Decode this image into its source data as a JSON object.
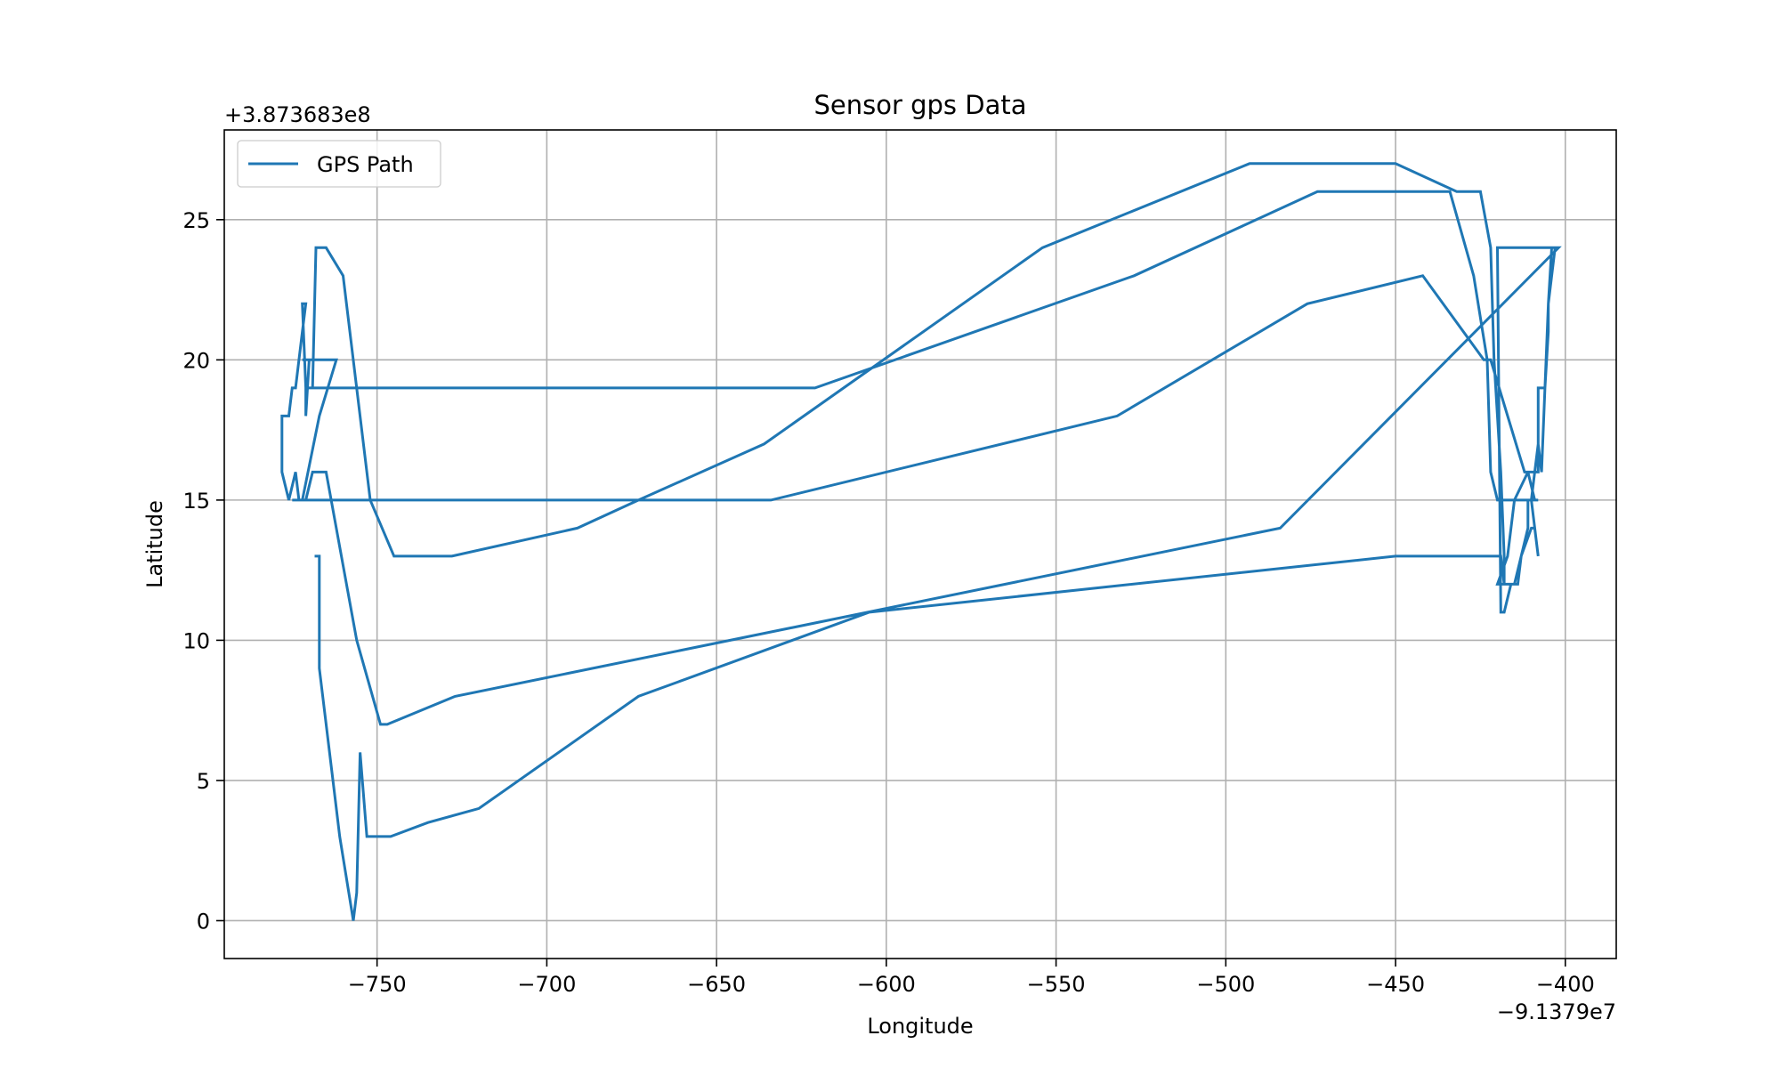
{
  "chart_data": {
    "type": "line",
    "title": "Sensor gps Data",
    "xlabel": "Longitude",
    "ylabel": "Latitude",
    "x_offset_label": "−9.1379e7",
    "y_offset_label": "+3.873683e8",
    "xlim": [
      -795,
      -385
    ],
    "ylim": [
      -1.35,
      28.2
    ],
    "x_ticks": [
      -750,
      -700,
      -650,
      -600,
      -550,
      -500,
      -450,
      -400
    ],
    "x_tick_labels": [
      "−750",
      "−700",
      "−650",
      "−600",
      "−550",
      "−500",
      "−450",
      "−400"
    ],
    "y_ticks": [
      0,
      5,
      10,
      15,
      20,
      25
    ],
    "y_tick_labels": [
      "0",
      "5",
      "10",
      "15",
      "20",
      "25"
    ],
    "grid": true,
    "legend_position": "top-left",
    "series": [
      {
        "name": "GPS Path",
        "color": "#1f77b4",
        "x": [
          -768,
          -767,
          -767,
          -763,
          -761,
          -757,
          -756,
          -755,
          -753,
          -746,
          -735,
          -720,
          -673,
          -605,
          -450,
          -425,
          -419,
          -418,
          -419,
          -417,
          -415,
          -413,
          -410,
          -409,
          -408,
          -410,
          -409,
          -408,
          -407,
          -405,
          -403,
          -420,
          -419,
          -418,
          -416,
          -414,
          -413,
          -411,
          -411,
          -410,
          -409,
          -408,
          -408,
          -407,
          -406,
          -405,
          -405,
          -404,
          -402,
          -484,
          -727,
          -747,
          -749,
          -756,
          -765,
          -769,
          -771,
          -772,
          -773,
          -774,
          -776,
          -778,
          -778,
          -776,
          -775,
          -774,
          -773,
          -773,
          -772,
          -772,
          -771,
          -772,
          -771,
          -771,
          -770,
          -772,
          -762,
          -767,
          -772,
          -774,
          -775,
          -634,
          -532,
          -476,
          -442,
          -424,
          -422,
          -412,
          -411,
          -409,
          -408,
          -411,
          -416,
          -420,
          -422,
          -423,
          -427,
          -434,
          -473,
          -527,
          -621,
          -771,
          -769,
          -768,
          -765,
          -760,
          -752,
          -745,
          -728,
          -691,
          -673,
          -636,
          -554,
          -493,
          -450,
          -432,
          -425,
          -422,
          -421,
          -419,
          -418,
          -418,
          -420,
          -417,
          -415,
          -411,
          -409
        ],
        "y": [
          13,
          13,
          9,
          5,
          3,
          0,
          1,
          6,
          3,
          3,
          3.5,
          4,
          8,
          11,
          13,
          13,
          13,
          12,
          12,
          12,
          12,
          13,
          14,
          14,
          13,
          15,
          16,
          17,
          16,
          22,
          24,
          24,
          11,
          11,
          12,
          12,
          13,
          14,
          15,
          15,
          16,
          16,
          19,
          19,
          19,
          21,
          22,
          24,
          24,
          14,
          8,
          7,
          7,
          10,
          16,
          16,
          15,
          15,
          15,
          16,
          15,
          16,
          18,
          18,
          19,
          19,
          20,
          20,
          21,
          21,
          22,
          22,
          19,
          18,
          20,
          20,
          20,
          18,
          15,
          15,
          15,
          15,
          18,
          22,
          23,
          20,
          20,
          16,
          16,
          15,
          15,
          15,
          15,
          15,
          16,
          20,
          23,
          26,
          26,
          23,
          19,
          19,
          19,
          24,
          24,
          23,
          15,
          13,
          13,
          14,
          15,
          17,
          24,
          27,
          27,
          26,
          26,
          24,
          20,
          16,
          13,
          12,
          12,
          13,
          15,
          16,
          16
        ]
      }
    ]
  }
}
